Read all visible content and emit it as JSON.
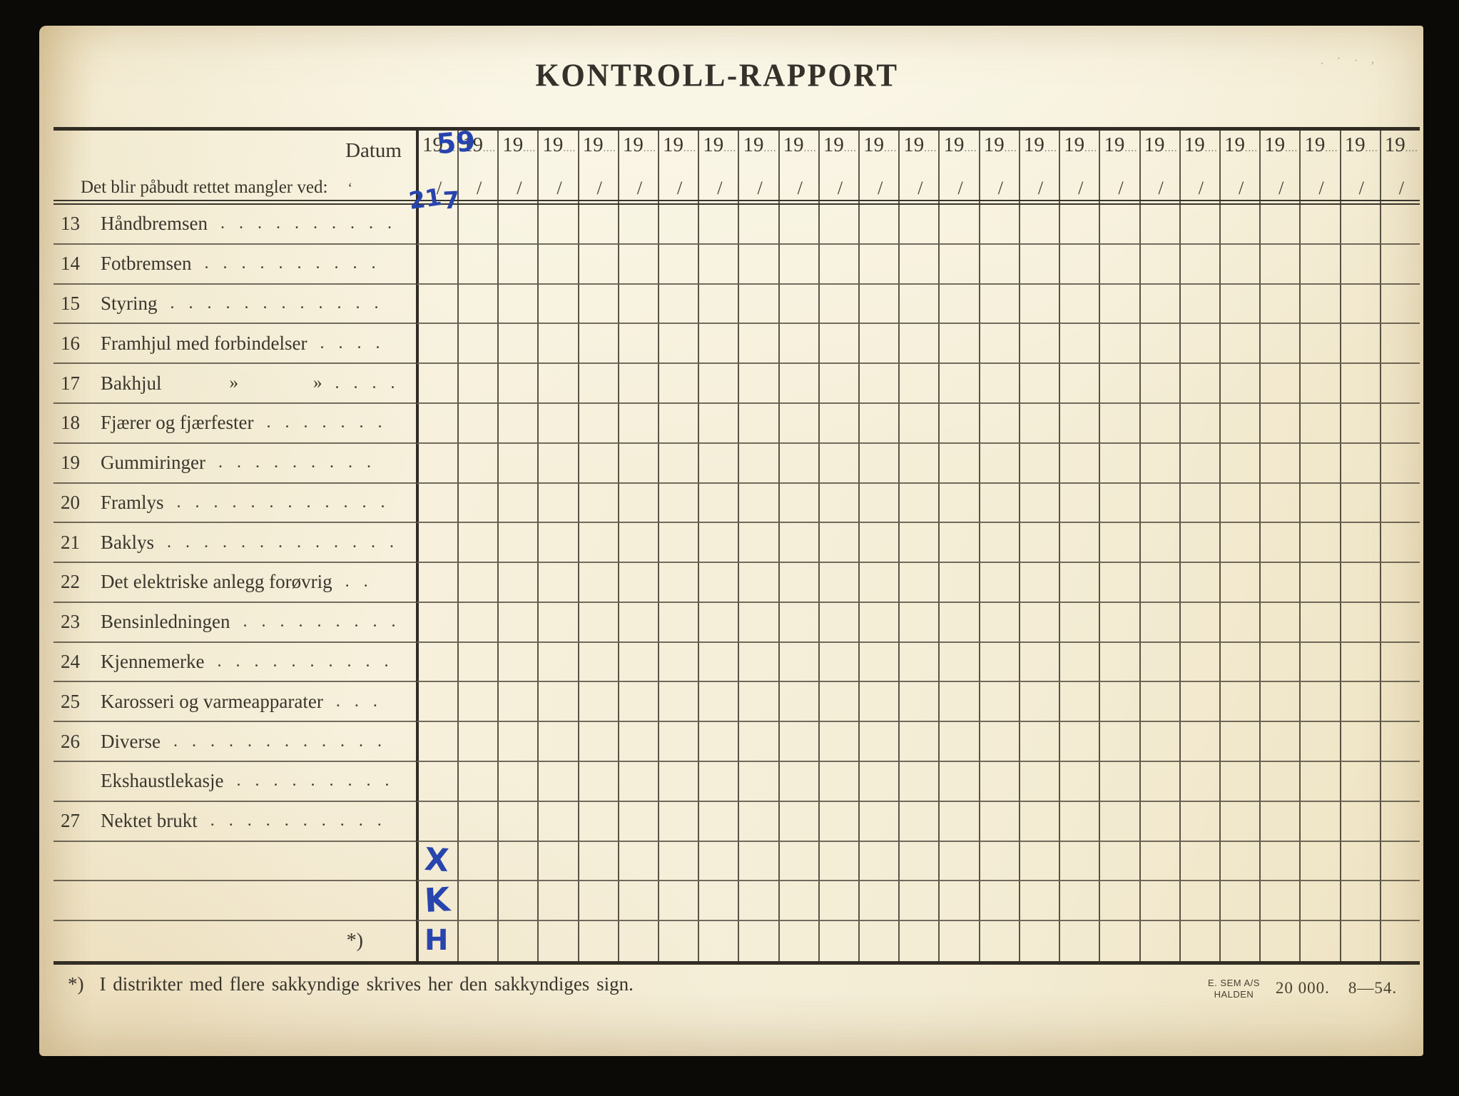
{
  "page": {
    "title": "KONTROLL-RAPPORT",
    "stray_marks": "· ´ · ,"
  },
  "table": {
    "header": {
      "datum_label": "Datum",
      "subtitle": "Det blir påbudt rettet mangler ved:",
      "subtitle_tick": "‘",
      "year_prefix": "19",
      "year_dots": "....",
      "slash": "/",
      "column_count": 25
    },
    "handwritten": {
      "ink_color": "#2844ad",
      "first_column_year": "59",
      "first_column_day": "21",
      "first_column_month": "7"
    },
    "rows": [
      {
        "num": "13",
        "label": "Håndbremsen",
        "dots": ". . . . . . . . . ."
      },
      {
        "num": "14",
        "label": "Fotbremsen",
        "dots": ". . . . . . . . . ."
      },
      {
        "num": "15",
        "label": "Styring",
        "dots": ". . . . . . . . . . . ."
      },
      {
        "num": "16",
        "label": "Framhjul med forbindelser",
        "dots": ". . . ."
      },
      {
        "num": "17",
        "label": "Bakhjul",
        "ditto": "»",
        "ditto2": "»",
        "dots": ". . . ."
      },
      {
        "num": "18",
        "label": "Fjærer og fjærfester",
        "dots": ". . . . . . ."
      },
      {
        "num": "19",
        "label": "Gummiringer",
        "dots": ". . . . . . . . ."
      },
      {
        "num": "20",
        "label": "Framlys",
        "dots": ". . . . . . . . . . . ."
      },
      {
        "num": "21",
        "label": "Baklys",
        "dots": ". . . . . . . . . . . . ."
      },
      {
        "num": "22",
        "label": "Det elektriske anlegg forøvrig",
        "dots": ". ."
      },
      {
        "num": "23",
        "label": "Bensinledningen",
        "dots": ". . . . . . . . ."
      },
      {
        "num": "24",
        "label": "Kjennemerke",
        "dots": ". . . . . . . . . ."
      },
      {
        "num": "25",
        "label": "Karosseri og varmeapparater",
        "dots": ". . ."
      },
      {
        "num": "26",
        "label": "Diverse",
        "dots": ". . . . . . . . . . . ."
      },
      {
        "num": "",
        "label": "Ekshaustlekasje",
        "dots": ". . . . . . . . ."
      },
      {
        "num": "27",
        "label": "Nektet brukt",
        "dots": ". . . . . . . . . ."
      }
    ],
    "bottom_rows": [
      {
        "mark": "X",
        "note": ""
      },
      {
        "mark": "K",
        "note": ""
      },
      {
        "mark": "H",
        "note": "*)"
      }
    ]
  },
  "footer": {
    "footnote_marker": "*)",
    "footnote_text": "I distrikter med flere sakkyndige skrives her den sakkyndiges sign.",
    "printer_line1": "E. SEM A/S",
    "printer_line2": "HALDEN",
    "print_run": "20 000.",
    "print_date": "8—54."
  }
}
